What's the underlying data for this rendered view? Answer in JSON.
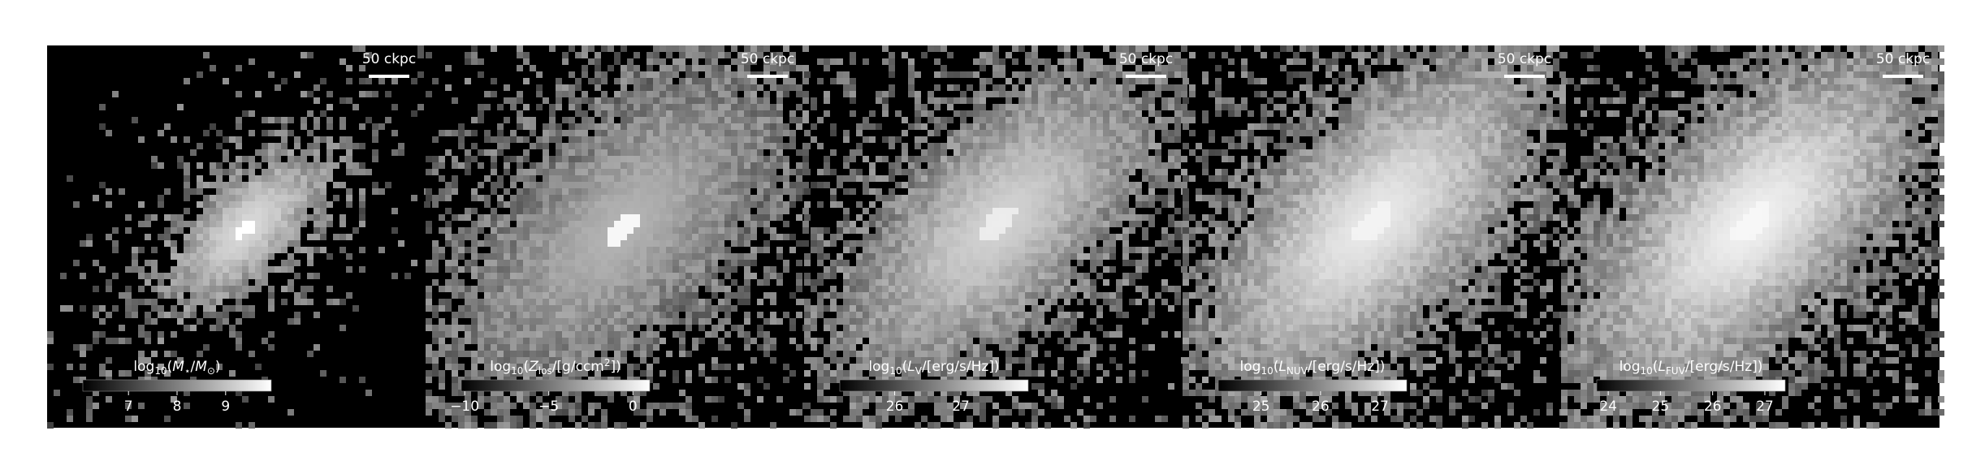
{
  "panels": [
    {
      "scale_bar": "50 ckpc",
      "colorbar": {
        "label": [
          {
            "text": "log"
          },
          {
            "text": "10",
            "sub": true
          },
          {
            "text": "("
          },
          {
            "text": "M",
            "italic": true
          },
          {
            "text": "⋆",
            "sub": true
          },
          {
            "text": "/"
          },
          {
            "text": "M",
            "italic": true
          },
          {
            "text": "⊙",
            "sub": true
          },
          {
            "text": ")"
          }
        ],
        "lim": [
          6.06,
          9.94
        ],
        "ticks": [
          7,
          8,
          9
        ]
      }
    },
    {
      "scale_bar": "50 ckpc",
      "colorbar": {
        "label": [
          {
            "text": "log"
          },
          {
            "text": "10",
            "sub": true
          },
          {
            "text": "("
          },
          {
            "text": "Z",
            "italic": true
          },
          {
            "text": "los",
            "sub": true
          },
          {
            "text": "/[g/ccm"
          },
          {
            "text": "2",
            "sup": true
          },
          {
            "text": "])"
          }
        ],
        "lim": [
          -10.2,
          1
        ],
        "ticks": [
          {
            "value": -10,
            "label": "−10"
          },
          {
            "value": -5,
            "label": "−5"
          },
          0
        ]
      }
    },
    {
      "scale_bar": "50 ckpc",
      "colorbar": {
        "label": [
          {
            "text": "log"
          },
          {
            "text": "10",
            "sub": true
          },
          {
            "text": "("
          },
          {
            "text": "L",
            "italic": true
          },
          {
            "text": "V",
            "sub": true
          },
          {
            "text": "/[erg/s/Hz])"
          }
        ],
        "lim": [
          25.17,
          28.02
        ],
        "ticks": [
          26,
          27
        ]
      }
    },
    {
      "scale_bar": "50 ckpc",
      "colorbar": {
        "label": [
          {
            "text": "log"
          },
          {
            "text": "10",
            "sub": true
          },
          {
            "text": "("
          },
          {
            "text": "L",
            "italic": true
          },
          {
            "text": "NUV",
            "sub": true
          },
          {
            "text": "/[erg/s/Hz])"
          }
        ],
        "lim": [
          24.28,
          27.45
        ],
        "ticks": [
          25,
          26,
          27
        ]
      }
    },
    {
      "scale_bar": "50 ckpc",
      "colorbar": {
        "label": [
          {
            "text": "log"
          },
          {
            "text": "10",
            "sub": true
          },
          {
            "text": "("
          },
          {
            "text": "L",
            "italic": true
          },
          {
            "text": "FUV",
            "sub": true
          },
          {
            "text": "/[erg/s/Hz])"
          }
        ],
        "lim": [
          23.78,
          27.39
        ],
        "ticks": [
          24,
          25,
          26,
          27
        ]
      }
    }
  ]
}
